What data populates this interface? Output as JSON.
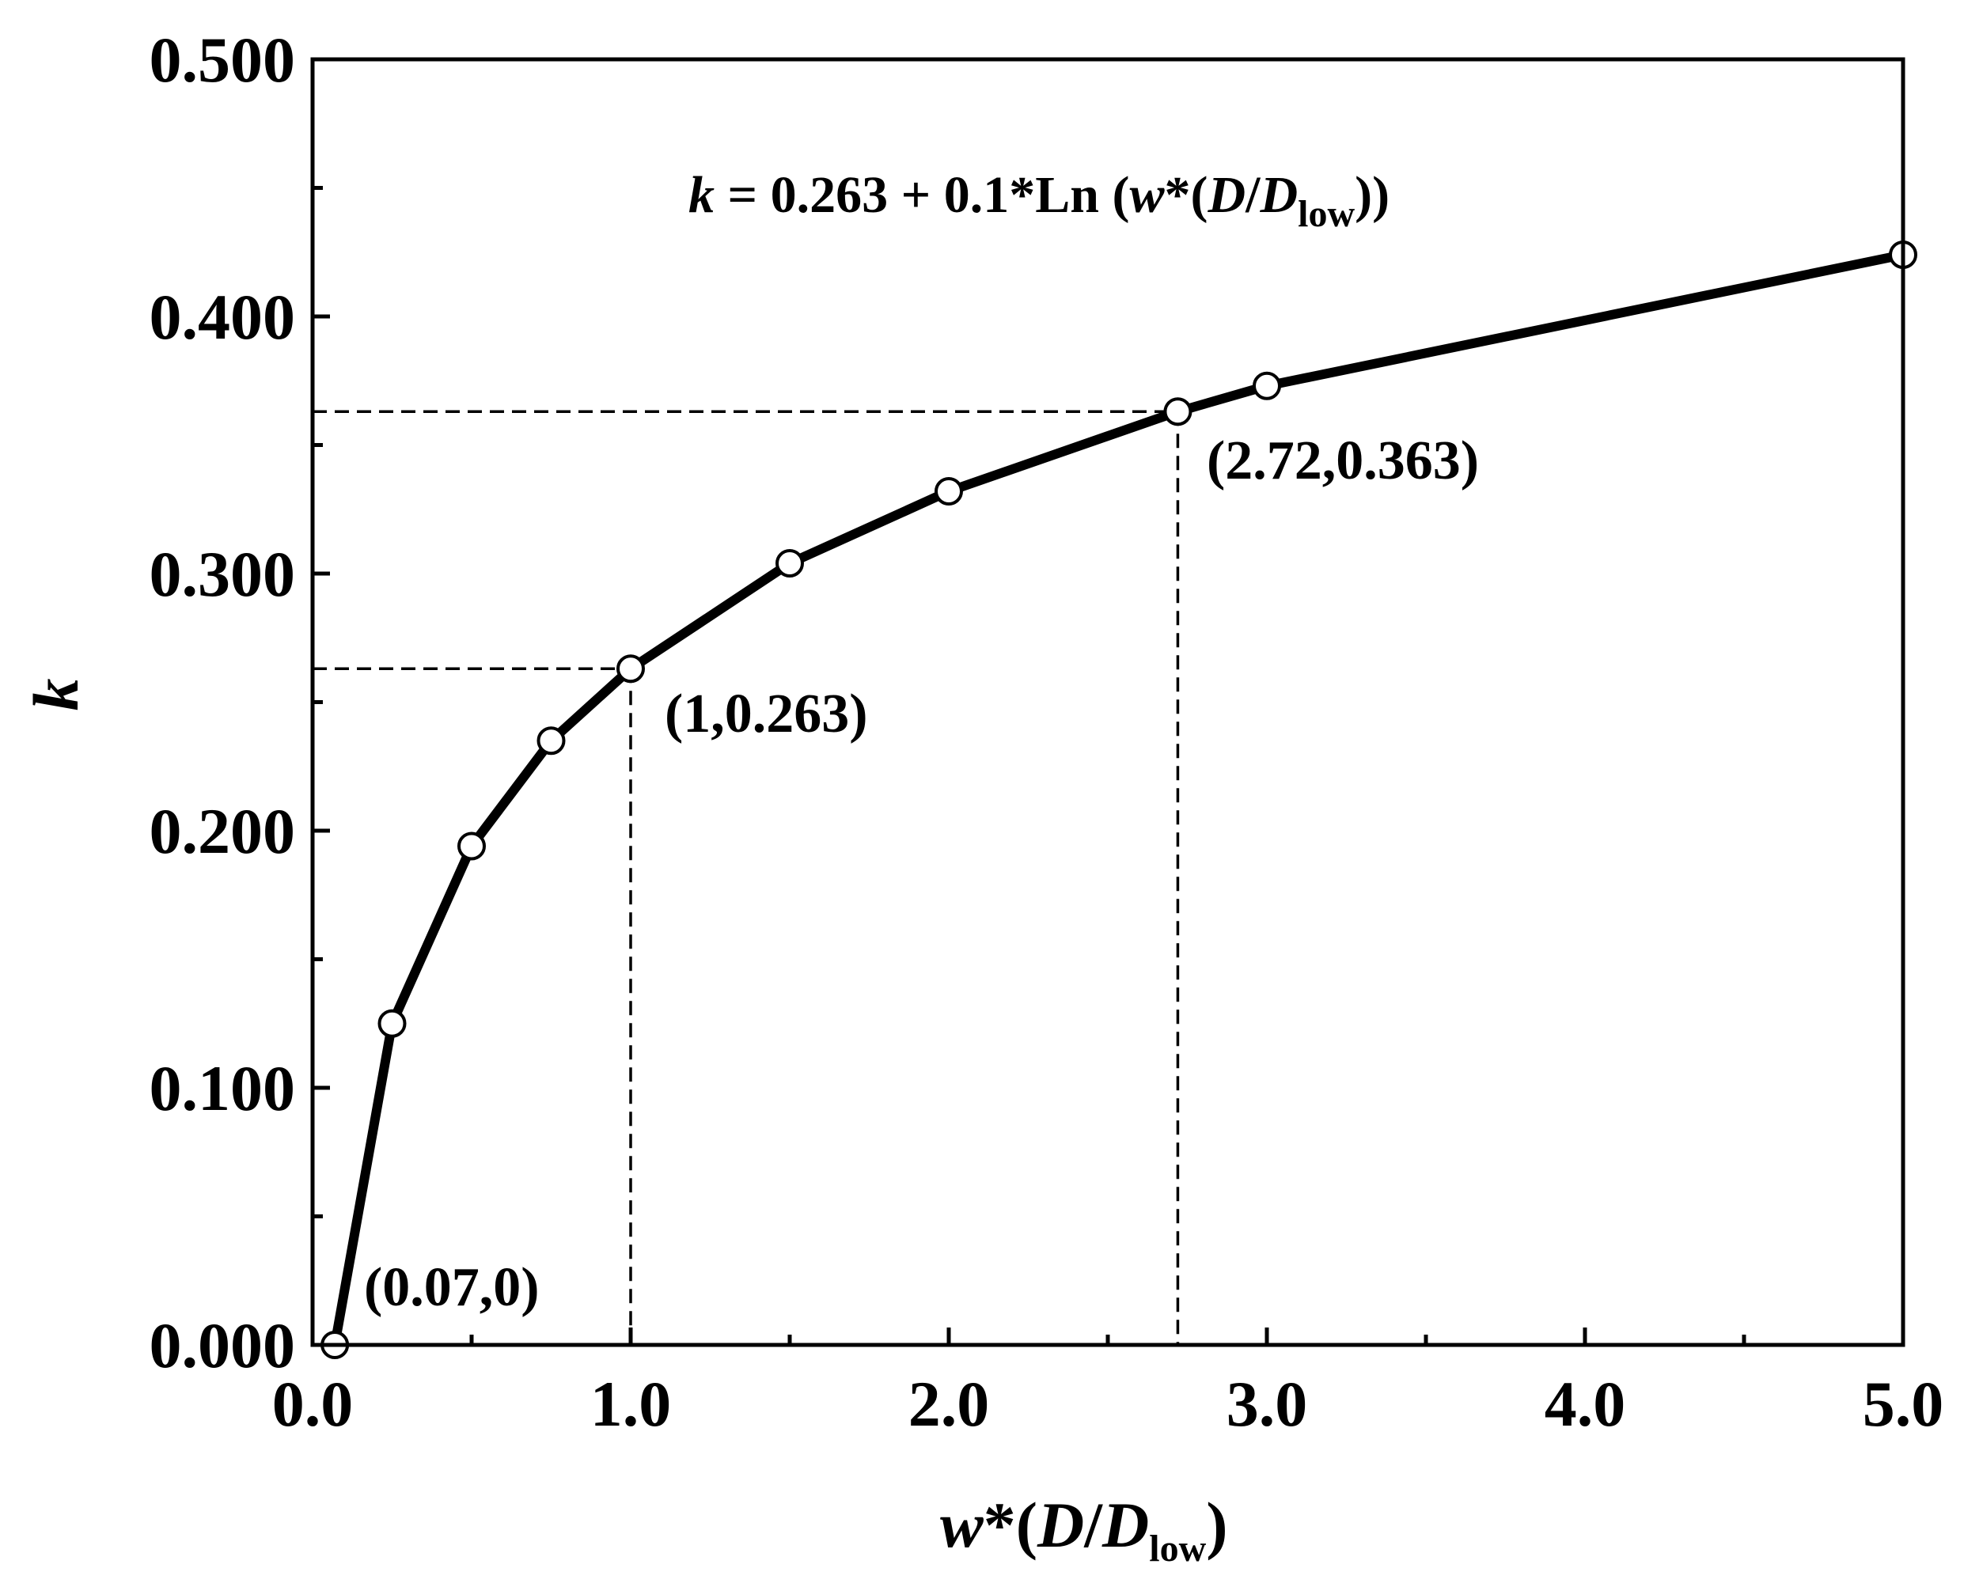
{
  "chart_data": {
    "type": "line",
    "x": [
      0.07,
      0.25,
      0.5,
      0.75,
      1.0,
      1.5,
      2.0,
      2.72,
      3.0,
      5.0
    ],
    "series": [
      {
        "values": [
          0.0,
          0.125,
          0.194,
          0.235,
          0.263,
          0.304,
          0.332,
          0.363,
          0.373,
          0.424
        ]
      }
    ],
    "xlim": [
      0.0,
      5.0
    ],
    "ylim": [
      0.0,
      0.5
    ],
    "x_ticks": [
      "0.0",
      "1.0",
      "2.0",
      "3.0",
      "4.0",
      "5.0"
    ],
    "y_ticks": [
      "0.000",
      "0.100",
      "0.200",
      "0.300",
      "0.400",
      "0.500"
    ],
    "xlabel": {
      "w": "w",
      "rest": "*(",
      "D1": "D",
      "slash": "/",
      "D2": "D",
      "sub": "low",
      "close": ")"
    },
    "ylabel": "k",
    "equation": {
      "k": "k",
      "body": " = 0.263 + 0.1*Ln (",
      "w": "w",
      "mid": "*(",
      "D1": "D",
      "slash": "/",
      "D2": "D",
      "sub": "low",
      "close": "))"
    },
    "annotations": [
      "(0.07,0)",
      "(1,0.263)",
      "(2.72,0.363)"
    ],
    "reference_points": [
      {
        "x": 1.0,
        "y": 0.263
      },
      {
        "x": 2.72,
        "y": 0.363
      }
    ],
    "grid": false,
    "line_color": "#000000",
    "marker": "open-circle"
  }
}
